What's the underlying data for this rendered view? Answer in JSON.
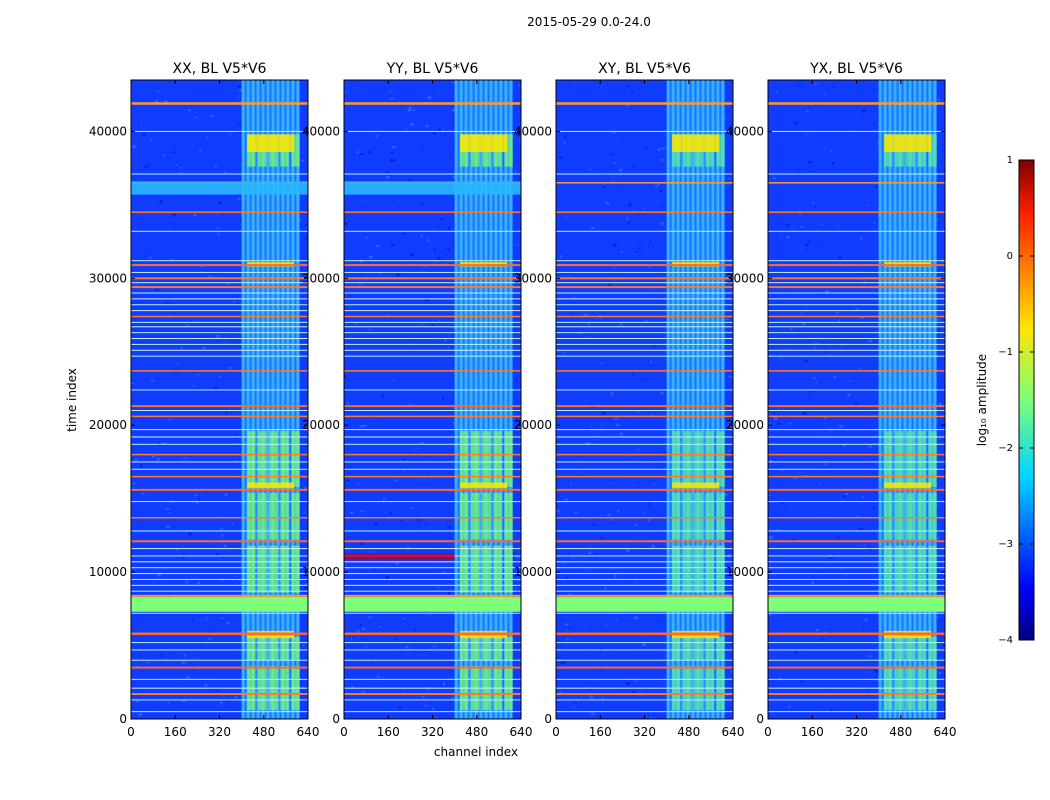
{
  "figure": {
    "suptitle": "2015-05-29 0.0-24.0",
    "xlabel": "channel index",
    "ylabel": "time index"
  },
  "colorbar": {
    "label": "log₁₀ amplitude",
    "ticks": [
      "1",
      "0",
      "−1",
      "−2",
      "−3",
      "−4"
    ],
    "colormap": "jet"
  },
  "chart_data": [
    {
      "type": "heatmap",
      "title": "XX, BL V5*V6",
      "xlim": [
        0,
        640
      ],
      "ylim": [
        0,
        43500
      ],
      "xticks": [
        0,
        160,
        320,
        480,
        640
      ],
      "yticks": [
        0,
        10000,
        20000,
        30000,
        40000
      ]
    },
    {
      "type": "heatmap",
      "title": "YY, BL V5*V6",
      "xlim": [
        0,
        640
      ],
      "ylim": [
        0,
        43500
      ],
      "xticks": [
        0,
        160,
        320,
        480,
        640
      ],
      "yticks": [
        0,
        10000,
        20000,
        30000,
        40000
      ]
    },
    {
      "type": "heatmap",
      "title": "XY, BL V5*V6",
      "xlim": [
        0,
        640
      ],
      "ylim": [
        0,
        43500
      ],
      "xticks": [
        0,
        160,
        320,
        480,
        640
      ],
      "yticks": [
        0,
        10000,
        20000,
        30000,
        40000
      ]
    },
    {
      "type": "heatmap",
      "title": "YX, BL V5*V6",
      "xlim": [
        0,
        640
      ],
      "ylim": [
        0,
        43500
      ],
      "xticks": [
        0,
        160,
        320,
        480,
        640
      ],
      "yticks": [
        0,
        10000,
        20000,
        30000,
        40000
      ]
    }
  ]
}
